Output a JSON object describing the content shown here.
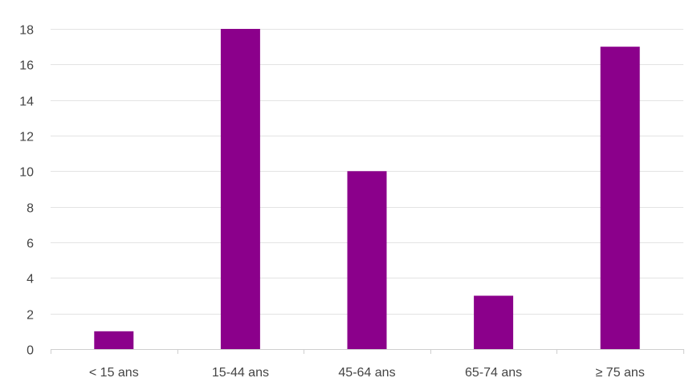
{
  "chart_data": {
    "type": "bar",
    "categories": [
      "< 15 ans",
      "15-44 ans",
      "45-64 ans",
      "65-74 ans",
      "≥ 75 ans"
    ],
    "values": [
      1,
      18,
      10,
      3,
      17
    ],
    "title": "",
    "xlabel": "",
    "ylabel": "",
    "ylim": [
      0,
      18
    ],
    "yticks": [
      0,
      2,
      4,
      6,
      8,
      10,
      12,
      14,
      16,
      18
    ],
    "grid": true,
    "legend": "none",
    "bar_color": "#8b008b"
  }
}
